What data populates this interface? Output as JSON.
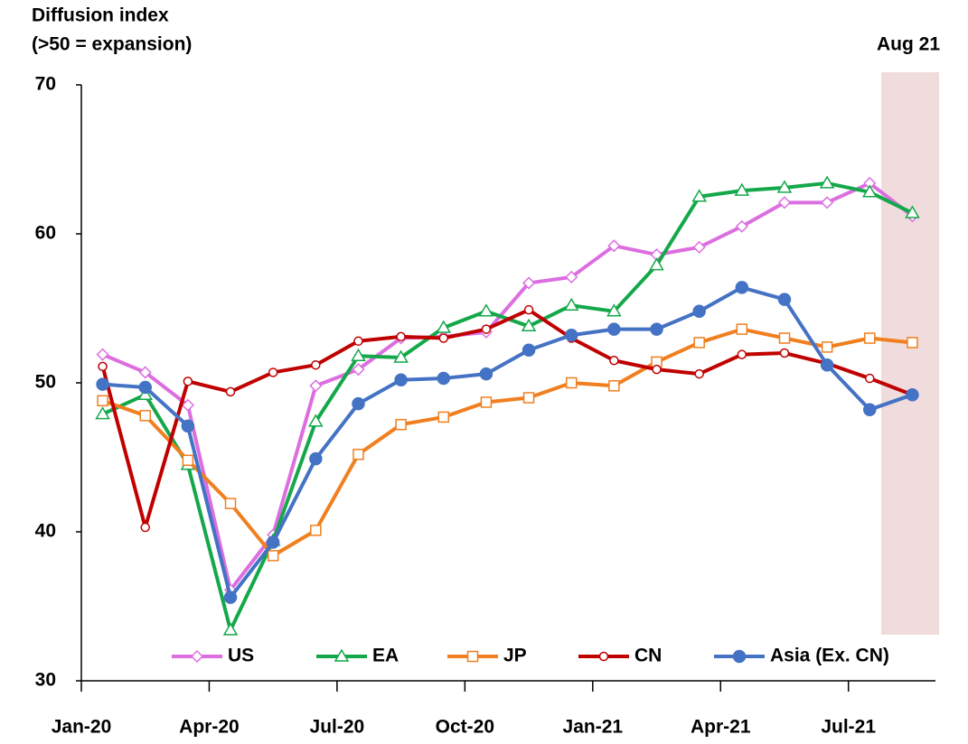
{
  "chart_data": {
    "type": "line",
    "ylabel": "Diffusion index",
    "ylabel_note": "(>50 = expansion)",
    "annotation": "Aug 21",
    "categories": [
      "Jan-20",
      null,
      null,
      "Apr-20",
      null,
      null,
      "Jul-20",
      null,
      null,
      "Oct-20",
      null,
      null,
      "Jan-21",
      null,
      null,
      "Apr-21",
      null,
      null,
      "Jul-21",
      null
    ],
    "ylim": [
      30,
      70
    ],
    "yticks": [
      30,
      40,
      50,
      60,
      70
    ],
    "grid": false,
    "legend": "bottom",
    "series": [
      {
        "name": "US",
        "color": "#dc6ee0",
        "marker": "diamond",
        "values": [
          51.9,
          50.7,
          48.5,
          36.1,
          39.8,
          49.8,
          50.9,
          53.0,
          53.1,
          53.4,
          56.7,
          57.1,
          59.2,
          58.6,
          59.1,
          60.5,
          62.1,
          62.1,
          63.4,
          61.2
        ]
      },
      {
        "name": "EA",
        "color": "#14a84a",
        "marker": "triangle",
        "values": [
          47.9,
          49.2,
          44.5,
          33.4,
          39.4,
          47.4,
          51.8,
          51.7,
          53.7,
          54.8,
          53.8,
          55.2,
          54.8,
          57.9,
          62.5,
          62.9,
          63.1,
          63.4,
          62.8,
          61.4
        ]
      },
      {
        "name": "JP",
        "color": "#f07f1f",
        "marker": "square",
        "values": [
          48.8,
          47.8,
          44.8,
          41.9,
          38.4,
          40.1,
          45.2,
          47.2,
          47.7,
          48.7,
          49.0,
          50.0,
          49.8,
          51.4,
          52.7,
          53.6,
          53.0,
          52.4,
          53.0,
          52.7
        ]
      },
      {
        "name": "CN",
        "color": "#c00000",
        "marker": "circle",
        "values": [
          51.1,
          40.3,
          50.1,
          49.4,
          50.7,
          51.2,
          52.8,
          53.1,
          53.0,
          53.6,
          54.9,
          53.0,
          51.5,
          50.9,
          50.6,
          51.9,
          52.0,
          51.3,
          50.3,
          49.2
        ]
      },
      {
        "name": "Asia (Ex. CN)",
        "color": "#4472c4",
        "marker": "dot",
        "values": [
          49.9,
          49.7,
          47.1,
          35.6,
          39.3,
          44.9,
          48.6,
          50.2,
          50.3,
          50.6,
          52.2,
          53.2,
          53.6,
          53.6,
          54.8,
          56.4,
          55.6,
          51.2,
          48.2,
          49.2
        ]
      }
    ]
  }
}
